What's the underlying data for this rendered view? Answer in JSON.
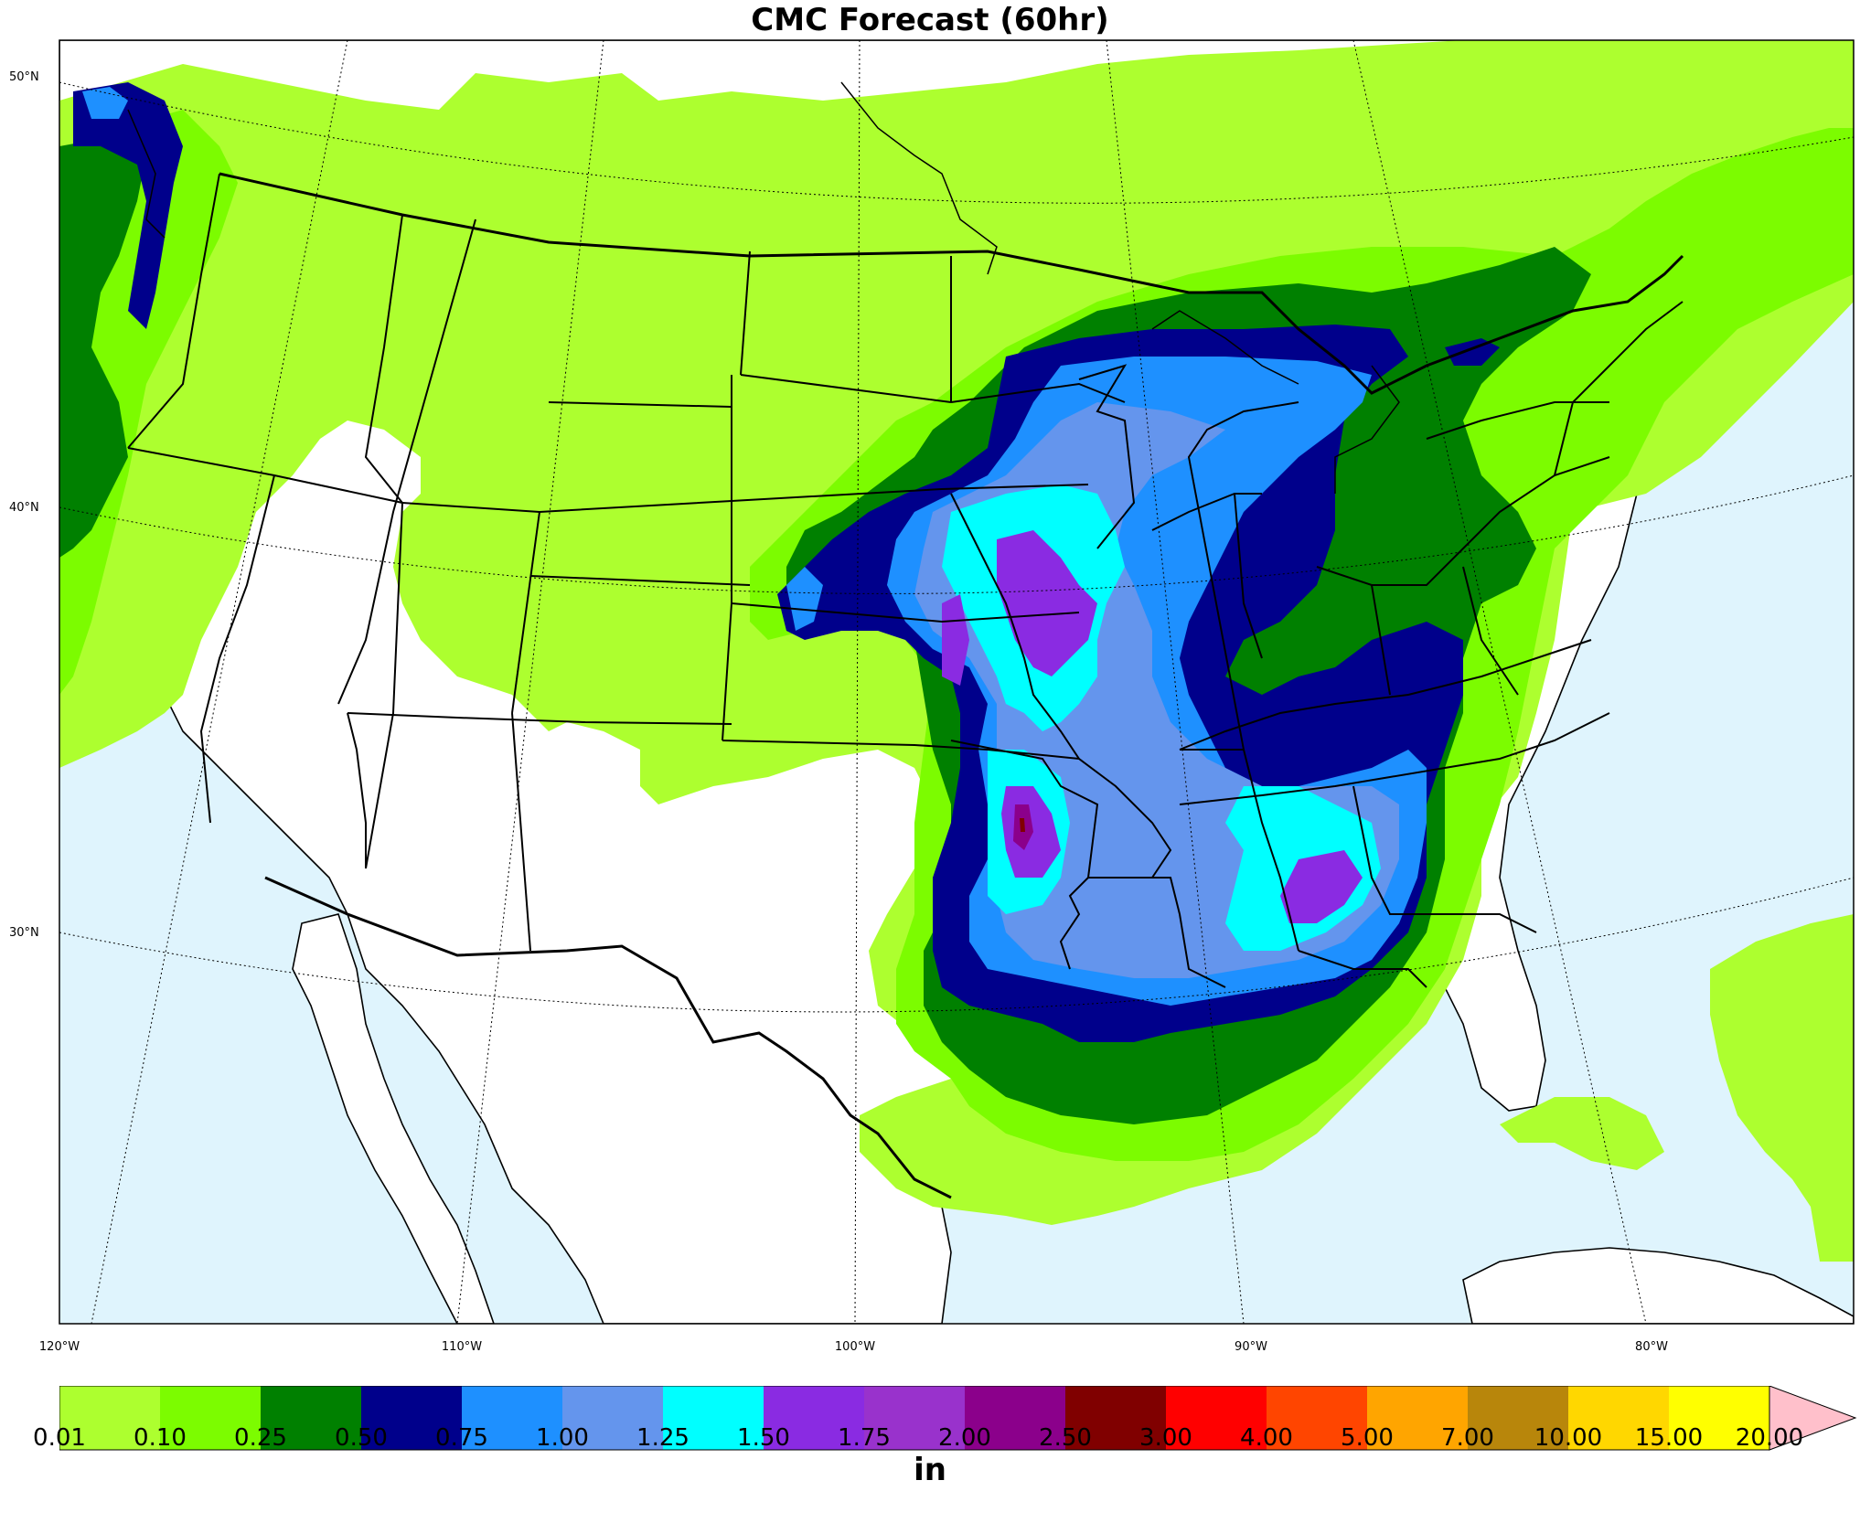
{
  "title": "CMC Forecast (60hr)",
  "lat_labels": [
    "50°N",
    "40°N",
    "30°N"
  ],
  "lon_labels": [
    "120°W",
    "110°W",
    "100°W",
    "90°W",
    "80°W"
  ],
  "colorbar": {
    "unit": "in",
    "ticks": [
      "0.01",
      "0.10",
      "0.25",
      "0.50",
      "0.75",
      "1.00",
      "1.25",
      "1.50",
      "1.75",
      "2.00",
      "2.50",
      "3.00",
      "4.00",
      "5.00",
      "7.00",
      "10.00",
      "15.00",
      "20.00"
    ],
    "colors": [
      "#adff2f",
      "#7cfc00",
      "#008000",
      "#00008b",
      "#1e90ff",
      "#6495ed",
      "#00ffff",
      "#8a2be2",
      "#9932cc",
      "#8b008b",
      "#800000",
      "#ff0000",
      "#ff4500",
      "#ffa500",
      "#b8860b",
      "#ffd700",
      "#ffff00"
    ],
    "extend_color": "#ffc0cb"
  },
  "colors": {
    "ocean": "#dff4fd",
    "land": "#ffffff"
  }
}
